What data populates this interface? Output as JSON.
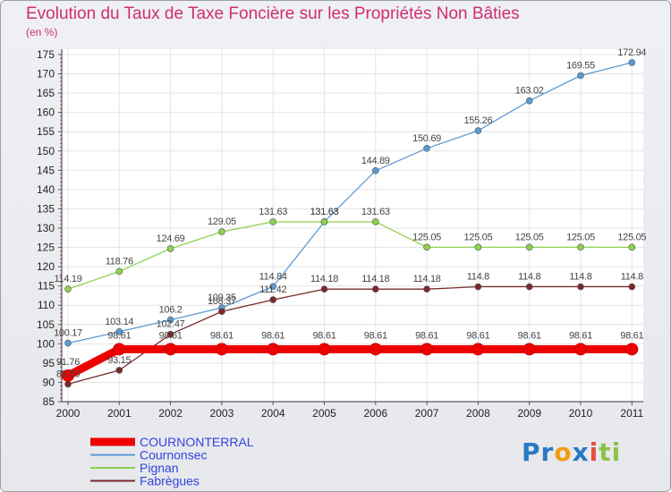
{
  "chart_data": {
    "type": "line",
    "title": "Evolution du Taux de Taxe Foncière sur les Propriétés Non Bâties",
    "ylabel": "(en %)",
    "xlabel": "",
    "x": [
      "2000",
      "2001",
      "2002",
      "2003",
      "2004",
      "2005",
      "2006",
      "2007",
      "2008",
      "2009",
      "2010",
      "2011"
    ],
    "ylim": [
      85,
      175
    ],
    "yticks": [
      85,
      90,
      95,
      100,
      105,
      110,
      115,
      120,
      125,
      130,
      135,
      140,
      145,
      150,
      155,
      160,
      165,
      170,
      175
    ],
    "series": [
      {
        "name": "COURNONTERRAL",
        "color": "#ee0000",
        "values": [
          91.76,
          98.61,
          98.61,
          98.61,
          98.61,
          98.61,
          98.61,
          98.61,
          98.61,
          98.61,
          98.61,
          98.61
        ],
        "labels": [
          "91.76",
          "98.61",
          "98.61",
          "98.61",
          "98.61",
          "98.61",
          "98.61",
          "98.61",
          "98.61",
          "98.61",
          "98.61",
          "98.61"
        ]
      },
      {
        "name": "Cournonsec",
        "color": "#5b9bd5",
        "values": [
          100.17,
          103.14,
          106.2,
          109.35,
          114.84,
          131.63,
          144.89,
          150.69,
          155.26,
          163.02,
          169.55,
          172.94
        ],
        "labels": [
          "100.17",
          "103.14",
          "106.2",
          "109.35",
          "114.84",
          "131.63",
          "144.89",
          "150.69",
          "155.26",
          "163.02",
          "169.55",
          "172.94"
        ]
      },
      {
        "name": "Pignan",
        "color": "#8fd14f",
        "values": [
          114.19,
          118.76,
          124.69,
          129.05,
          131.63,
          131.63,
          131.63,
          125.05,
          125.05,
          125.05,
          125.05,
          125.05
        ],
        "labels": [
          "114.19",
          "118.76",
          "124.69",
          "129.05",
          "131.63",
          "131.63",
          "131.63",
          "125.05",
          "125.05",
          "125.05",
          "125.05",
          "125.05"
        ]
      },
      {
        "name": "Fabrègues",
        "color": "#7a2a2a",
        "values": [
          89.55,
          93.15,
          102.47,
          108.37,
          111.42,
          114.18,
          114.18,
          114.18,
          114.8,
          114.8,
          114.8,
          114.8
        ],
        "labels": [
          "89.55",
          "93.15",
          "102.47",
          "108.37",
          "111.42",
          "114.18",
          "114.18",
          "114.18",
          "114.8",
          "114.8",
          "114.8",
          "114.8"
        ]
      }
    ],
    "legend": "bottom-left"
  },
  "logo": {
    "text": "Proxiti",
    "letters": [
      "P",
      "r",
      "o",
      "x",
      "i",
      "t",
      "i"
    ],
    "colors": [
      "#2b78c2",
      "#2b78c2",
      "#f39c12",
      "#2b78c2",
      "#e74c3c",
      "#8bc34a",
      "#8bc34a"
    ]
  }
}
